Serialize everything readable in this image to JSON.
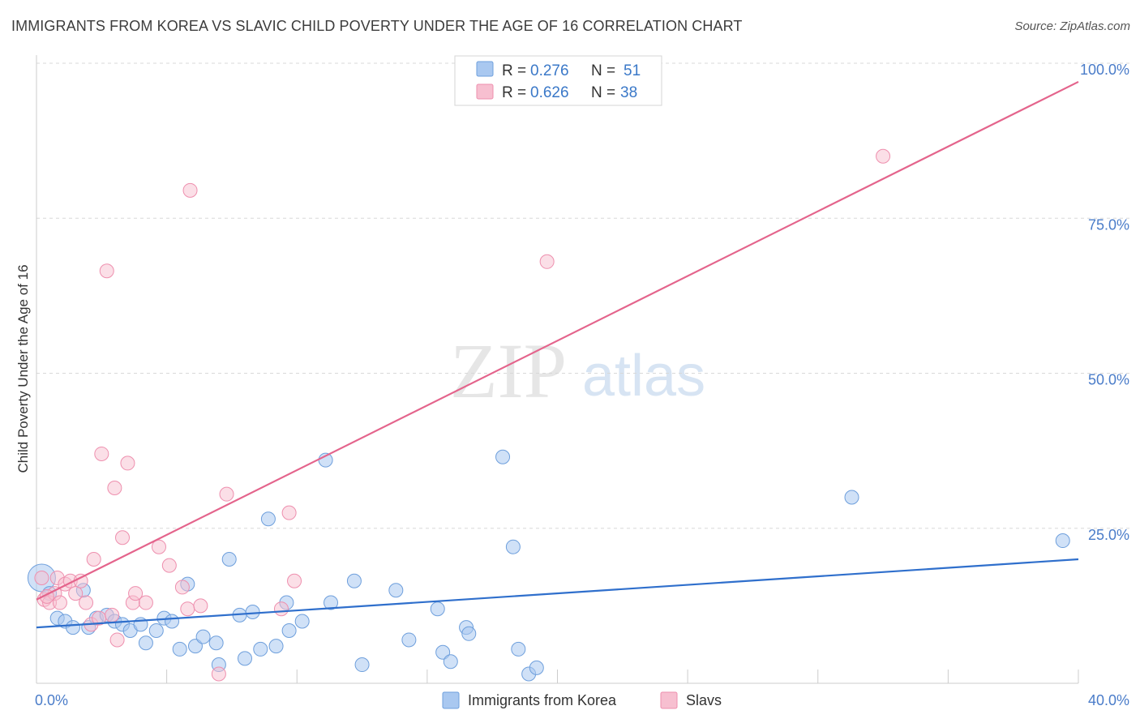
{
  "header": {
    "title": "IMMIGRANTS FROM KOREA VS SLAVIC CHILD POVERTY UNDER THE AGE OF 16 CORRELATION CHART",
    "source": "Source: ZipAtlas.com"
  },
  "watermark": {
    "zip": "ZIP",
    "atlas": "atlas"
  },
  "colors": {
    "korea_fill": "#a9c8f0",
    "korea_stroke": "#6e9fdc",
    "korea_line": "#2f6fcc",
    "slavs_fill": "#f7bfd0",
    "slavs_stroke": "#ee8fae",
    "slavs_line": "#e4648c",
    "grid": "#d8d8d8",
    "tick_label": "#4a7cc9"
  },
  "legend": {
    "rows": [
      {
        "r_label": "R =",
        "r_value": "0.276",
        "n_label": "N =",
        "n_value": "51"
      },
      {
        "r_label": "R =",
        "r_value": "0.626",
        "n_label": "N =",
        "n_value": "38"
      }
    ]
  },
  "chart_data": {
    "type": "scatter",
    "title": "IMMIGRANTS FROM KOREA VS SLAVIC CHILD POVERTY UNDER THE AGE OF 16 CORRELATION CHART",
    "xlabel": "",
    "ylabel": "Child Poverty Under the Age of 16",
    "xlim": [
      0,
      40
    ],
    "ylim": [
      0,
      100
    ],
    "x_tick_labels": [
      {
        "value": 0,
        "label": "0.0%"
      },
      {
        "value": 40,
        "label": "40.0%"
      }
    ],
    "y_tick_labels": [
      {
        "value": 25,
        "label": "25.0%"
      },
      {
        "value": 50,
        "label": "50.0%"
      },
      {
        "value": 75,
        "label": "75.0%"
      },
      {
        "value": 100,
        "label": "100.0%"
      }
    ],
    "legend_position": "top-center",
    "series": [
      {
        "name": "Immigrants from Korea",
        "r": 0.276,
        "n": 51,
        "trend": {
          "x": [
            0,
            40
          ],
          "y": [
            9.0,
            20.0
          ]
        },
        "points": [
          {
            "x": 0.2,
            "y": 17.0,
            "big": true
          },
          {
            "x": 0.5,
            "y": 14.5
          },
          {
            "x": 0.8,
            "y": 10.5
          },
          {
            "x": 1.1,
            "y": 10.0
          },
          {
            "x": 1.4,
            "y": 9.0
          },
          {
            "x": 1.8,
            "y": 15.0
          },
          {
            "x": 2.0,
            "y": 9.0
          },
          {
            "x": 2.3,
            "y": 10.5
          },
          {
            "x": 2.7,
            "y": 11.0
          },
          {
            "x": 3.0,
            "y": 10.0
          },
          {
            "x": 3.3,
            "y": 9.5
          },
          {
            "x": 3.6,
            "y": 8.5
          },
          {
            "x": 4.0,
            "y": 9.5
          },
          {
            "x": 4.2,
            "y": 6.5
          },
          {
            "x": 4.6,
            "y": 8.5
          },
          {
            "x": 4.9,
            "y": 10.5
          },
          {
            "x": 5.2,
            "y": 10.0
          },
          {
            "x": 5.5,
            "y": 5.5
          },
          {
            "x": 5.8,
            "y": 16.0
          },
          {
            "x": 6.1,
            "y": 6.0
          },
          {
            "x": 6.4,
            "y": 7.5
          },
          {
            "x": 6.9,
            "y": 6.5
          },
          {
            "x": 7.0,
            "y": 3.0
          },
          {
            "x": 7.4,
            "y": 20.0
          },
          {
            "x": 7.8,
            "y": 11.0
          },
          {
            "x": 8.0,
            "y": 4.0
          },
          {
            "x": 8.3,
            "y": 11.5
          },
          {
            "x": 8.6,
            "y": 5.5
          },
          {
            "x": 8.9,
            "y": 26.5
          },
          {
            "x": 9.2,
            "y": 6.0
          },
          {
            "x": 9.6,
            "y": 13.0
          },
          {
            "x": 9.7,
            "y": 8.5
          },
          {
            "x": 10.2,
            "y": 10.0
          },
          {
            "x": 11.1,
            "y": 36.0
          },
          {
            "x": 11.3,
            "y": 13.0
          },
          {
            "x": 12.2,
            "y": 16.5
          },
          {
            "x": 12.5,
            "y": 3.0
          },
          {
            "x": 13.8,
            "y": 15.0
          },
          {
            "x": 14.3,
            "y": 7.0
          },
          {
            "x": 15.4,
            "y": 12.0
          },
          {
            "x": 15.6,
            "y": 5.0
          },
          {
            "x": 15.9,
            "y": 3.5
          },
          {
            "x": 16.5,
            "y": 9.0
          },
          {
            "x": 16.6,
            "y": 8.0
          },
          {
            "x": 17.9,
            "y": 36.5
          },
          {
            "x": 18.3,
            "y": 22.0
          },
          {
            "x": 18.5,
            "y": 5.5
          },
          {
            "x": 18.9,
            "y": 1.5
          },
          {
            "x": 19.2,
            "y": 2.5
          },
          {
            "x": 31.3,
            "y": 30.0
          },
          {
            "x": 39.4,
            "y": 23.0
          }
        ]
      },
      {
        "name": "Slavs",
        "r": 0.626,
        "n": 38,
        "trend": {
          "x": [
            0,
            40
          ],
          "y": [
            13.5,
            97.0
          ]
        },
        "points": [
          {
            "x": 0.2,
            "y": 17.0
          },
          {
            "x": 0.3,
            "y": 13.5
          },
          {
            "x": 0.5,
            "y": 13.0
          },
          {
            "x": 0.7,
            "y": 14.5
          },
          {
            "x": 0.8,
            "y": 17.0
          },
          {
            "x": 0.9,
            "y": 13.0
          },
          {
            "x": 1.1,
            "y": 16.0
          },
          {
            "x": 1.3,
            "y": 16.5
          },
          {
            "x": 1.5,
            "y": 14.5
          },
          {
            "x": 1.7,
            "y": 16.5
          },
          {
            "x": 1.9,
            "y": 13.0
          },
          {
            "x": 2.1,
            "y": 9.5
          },
          {
            "x": 2.2,
            "y": 20.0
          },
          {
            "x": 2.4,
            "y": 10.5
          },
          {
            "x": 2.5,
            "y": 37.0
          },
          {
            "x": 2.7,
            "y": 66.5
          },
          {
            "x": 2.9,
            "y": 11.0
          },
          {
            "x": 3.0,
            "y": 31.5
          },
          {
            "x": 3.1,
            "y": 7.0
          },
          {
            "x": 3.3,
            "y": 23.5
          },
          {
            "x": 3.5,
            "y": 35.5
          },
          {
            "x": 3.7,
            "y": 13.0
          },
          {
            "x": 3.8,
            "y": 14.5
          },
          {
            "x": 4.2,
            "y": 13.0
          },
          {
            "x": 4.7,
            "y": 22.0
          },
          {
            "x": 5.1,
            "y": 19.0
          },
          {
            "x": 5.6,
            "y": 15.5
          },
          {
            "x": 5.8,
            "y": 12.0
          },
          {
            "x": 5.9,
            "y": 79.5
          },
          {
            "x": 6.3,
            "y": 12.5
          },
          {
            "x": 7.0,
            "y": 1.5
          },
          {
            "x": 7.3,
            "y": 30.5
          },
          {
            "x": 9.4,
            "y": 12.0
          },
          {
            "x": 9.7,
            "y": 27.5
          },
          {
            "x": 9.9,
            "y": 16.5
          },
          {
            "x": 19.6,
            "y": 68.0
          },
          {
            "x": 32.5,
            "y": 85.0
          },
          {
            "x": 0.4,
            "y": 14.0
          }
        ]
      }
    ]
  },
  "bottom_legend": {
    "items": [
      {
        "label": "Immigrants from Korea"
      },
      {
        "label": "Slavs"
      }
    ]
  }
}
